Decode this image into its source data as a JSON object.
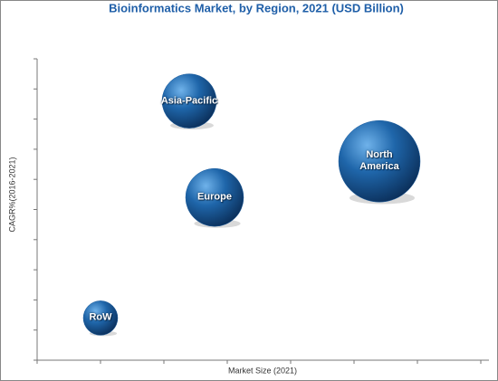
{
  "chart_data": {
    "type": "bubble",
    "title": "Bioinformatics Market, by Region, 2021 (USD Billion)",
    "x_label": "Market Size (2021)",
    "y_label": "CAGR%(2016-2021)",
    "categories": [
      "Asia-Pacific",
      "North America",
      "Europe",
      "RoW"
    ],
    "x": [
      2.4,
      5.4,
      2.8,
      1.0
    ],
    "values": [
      8.6,
      6.6,
      5.4,
      1.4
    ],
    "sizes": [
      30,
      45,
      32,
      19
    ],
    "color": "#1a5c9e",
    "xlim": [
      0,
      7
    ],
    "xticks": [
      0,
      1,
      2,
      3,
      4,
      5,
      6,
      7
    ],
    "ylim": [
      0,
      10
    ],
    "yticks": [
      0,
      1,
      2,
      3,
      4,
      5,
      6,
      7,
      8,
      9,
      10
    ]
  }
}
